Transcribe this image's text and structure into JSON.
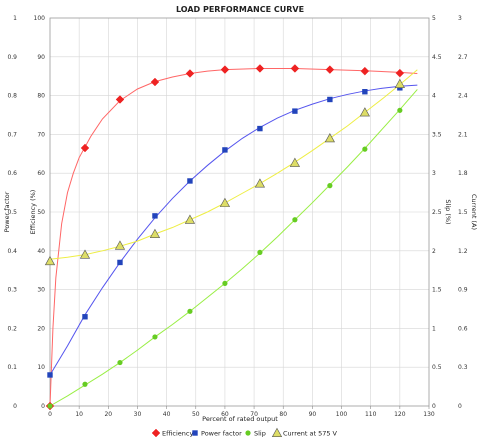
{
  "chart_data": {
    "type": "line",
    "title": "LOAD PERFORMANCE CURVE",
    "xlabel": "Percent of rated output",
    "xlim": [
      0,
      130
    ],
    "x_ticks": [
      "0",
      "10",
      "20",
      "30",
      "40",
      "50",
      "60",
      "70",
      "80",
      "90",
      "100",
      "110",
      "120",
      "130"
    ],
    "grid": true,
    "legend_position": "bottom",
    "axes": {
      "left_outer": {
        "label": "Power factor",
        "lim": [
          0,
          1
        ],
        "ticks": [
          "0",
          "0.1",
          "0.2",
          "0.3",
          "0.4",
          "0.5",
          "0.6",
          "0.7",
          "0.8",
          "0.9",
          "1"
        ]
      },
      "left_inner": {
        "label": "Efficiency (%)",
        "lim": [
          0,
          100
        ],
        "ticks": [
          "0",
          "10",
          "20",
          "30",
          "40",
          "50",
          "60",
          "70",
          "80",
          "90",
          "100"
        ]
      },
      "right_inner": {
        "label": "Slip (%)",
        "lim": [
          0,
          5
        ],
        "ticks": [
          "0",
          "0.5",
          "1",
          "1.5",
          "2",
          "2.5",
          "3",
          "3.5",
          "4",
          "4.5",
          "5"
        ]
      },
      "right_outer": {
        "label": "Current (A)",
        "lim": [
          0,
          3
        ],
        "ticks": [
          "0",
          "0.3",
          "0.6",
          "0.9",
          "1.2",
          "1.5",
          "1.8",
          "2.1",
          "2.4",
          "2.7",
          "3"
        ]
      }
    },
    "series": [
      {
        "name": "Efficiency",
        "axis": "left_inner",
        "color": "#ff6666",
        "marker": "diamond",
        "marker_color": "#ee2222",
        "points": [
          [
            0,
            0
          ],
          [
            12,
            66.5
          ],
          [
            24,
            79
          ],
          [
            36,
            83.5
          ],
          [
            48,
            85.7
          ],
          [
            60,
            86.7
          ],
          [
            72,
            87
          ],
          [
            84,
            87
          ],
          [
            96,
            86.7
          ],
          [
            108,
            86.3
          ],
          [
            120,
            85.8
          ]
        ],
        "curve": [
          [
            0,
            0
          ],
          [
            1,
            20
          ],
          [
            2,
            33
          ],
          [
            4,
            47
          ],
          [
            6,
            55
          ],
          [
            8,
            60
          ],
          [
            10,
            64
          ],
          [
            14,
            69.5
          ],
          [
            18,
            74
          ],
          [
            24,
            78.7
          ],
          [
            30,
            81.7
          ],
          [
            36,
            83.6
          ],
          [
            42,
            84.8
          ],
          [
            48,
            85.7
          ],
          [
            54,
            86.3
          ],
          [
            60,
            86.7
          ],
          [
            72,
            87
          ],
          [
            84,
            87
          ],
          [
            96,
            86.7
          ],
          [
            108,
            86.4
          ],
          [
            120,
            86
          ],
          [
            126,
            85.7
          ]
        ]
      },
      {
        "name": "Power factor",
        "axis": "left_outer",
        "color": "#5555ee",
        "marker": "square",
        "marker_color": "#2244bb",
        "points": [
          [
            0,
            0.08
          ],
          [
            12,
            0.23
          ],
          [
            24,
            0.37
          ],
          [
            36,
            0.49
          ],
          [
            48,
            0.58
          ],
          [
            60,
            0.66
          ],
          [
            72,
            0.715
          ],
          [
            84,
            0.76
          ],
          [
            96,
            0.79
          ],
          [
            108,
            0.81
          ],
          [
            120,
            0.82
          ]
        ],
        "curve": [
          [
            0,
            0.08
          ],
          [
            6,
            0.155
          ],
          [
            12,
            0.235
          ],
          [
            18,
            0.305
          ],
          [
            24,
            0.37
          ],
          [
            30,
            0.43
          ],
          [
            36,
            0.485
          ],
          [
            42,
            0.535
          ],
          [
            48,
            0.58
          ],
          [
            54,
            0.62
          ],
          [
            60,
            0.657
          ],
          [
            66,
            0.69
          ],
          [
            72,
            0.718
          ],
          [
            78,
            0.742
          ],
          [
            84,
            0.762
          ],
          [
            90,
            0.778
          ],
          [
            96,
            0.792
          ],
          [
            102,
            0.803
          ],
          [
            108,
            0.812
          ],
          [
            114,
            0.819
          ],
          [
            120,
            0.824
          ],
          [
            126,
            0.827
          ]
        ]
      },
      {
        "name": "Slip",
        "axis": "right_inner",
        "color": "#99ee44",
        "marker": "circle",
        "marker_color": "#66cc22",
        "points": [
          [
            0,
            0
          ],
          [
            12,
            0.28
          ],
          [
            24,
            0.56
          ],
          [
            36,
            0.89
          ],
          [
            48,
            1.22
          ],
          [
            60,
            1.58
          ],
          [
            72,
            1.98
          ],
          [
            84,
            2.4
          ],
          [
            96,
            2.84
          ],
          [
            108,
            3.31
          ],
          [
            120,
            3.81
          ]
        ],
        "curve": [
          [
            0,
            0
          ],
          [
            6,
            0.13
          ],
          [
            12,
            0.27
          ],
          [
            18,
            0.41
          ],
          [
            24,
            0.56
          ],
          [
            30,
            0.72
          ],
          [
            36,
            0.89
          ],
          [
            42,
            1.05
          ],
          [
            48,
            1.22
          ],
          [
            54,
            1.4
          ],
          [
            60,
            1.58
          ],
          [
            66,
            1.77
          ],
          [
            72,
            1.97
          ],
          [
            78,
            2.18
          ],
          [
            84,
            2.4
          ],
          [
            90,
            2.62
          ],
          [
            96,
            2.85
          ],
          [
            102,
            3.08
          ],
          [
            108,
            3.32
          ],
          [
            114,
            3.57
          ],
          [
            120,
            3.82
          ],
          [
            126,
            4.08
          ]
        ]
      },
      {
        "name": "Current at 575 V",
        "axis": "right_outer",
        "color": "#eeee44",
        "marker": "triangle",
        "marker_color": "#dddd66",
        "points": [
          [
            0,
            1.12
          ],
          [
            12,
            1.17
          ],
          [
            24,
            1.24
          ],
          [
            36,
            1.33
          ],
          [
            48,
            1.44
          ],
          [
            60,
            1.57
          ],
          [
            72,
            1.72
          ],
          [
            84,
            1.88
          ],
          [
            96,
            2.07
          ],
          [
            108,
            2.27
          ],
          [
            120,
            2.49
          ]
        ],
        "curve": [
          [
            0,
            1.135
          ],
          [
            6,
            1.15
          ],
          [
            12,
            1.17
          ],
          [
            18,
            1.2
          ],
          [
            24,
            1.235
          ],
          [
            30,
            1.275
          ],
          [
            36,
            1.33
          ],
          [
            42,
            1.38
          ],
          [
            48,
            1.44
          ],
          [
            54,
            1.5
          ],
          [
            60,
            1.57
          ],
          [
            66,
            1.645
          ],
          [
            72,
            1.72
          ],
          [
            78,
            1.8
          ],
          [
            84,
            1.885
          ],
          [
            90,
            1.975
          ],
          [
            96,
            2.07
          ],
          [
            102,
            2.165
          ],
          [
            108,
            2.27
          ],
          [
            114,
            2.375
          ],
          [
            120,
            2.485
          ],
          [
            126,
            2.6
          ]
        ]
      }
    ]
  }
}
